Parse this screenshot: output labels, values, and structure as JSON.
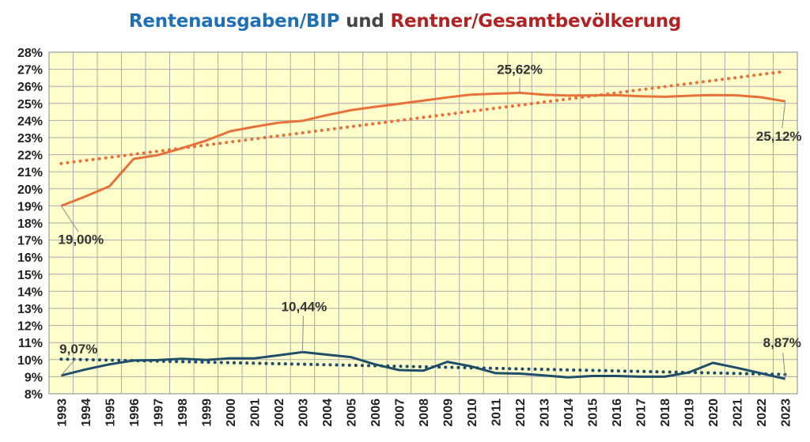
{
  "title": {
    "part1": "Rentenausgaben/BIP",
    "part2": "und",
    "part3": "Rentner/Gesamtbevölkerung"
  },
  "colors": {
    "title_blue": "#1F6FB4",
    "title_red": "#B22222",
    "plot_background": "#FFFFCC",
    "orange_series": "#E8703A",
    "blue_series": "#1F4E6B",
    "grid": "#AAAAAA"
  },
  "chart_data": {
    "type": "line",
    "ylim": [
      0.08,
      0.28
    ],
    "y_tick_step": 0.01,
    "y_tick_labels": [
      "8%",
      "9%",
      "10%",
      "11%",
      "12%",
      "13%",
      "14%",
      "15%",
      "16%",
      "17%",
      "18%",
      "19%",
      "20%",
      "21%",
      "22%",
      "23%",
      "24%",
      "25%",
      "26%",
      "27%",
      "28%"
    ],
    "grid": true,
    "categories": [
      "1993",
      "1994",
      "1995",
      "1996",
      "1997",
      "1998",
      "1999",
      "2000",
      "2001",
      "2002",
      "2003",
      "2004",
      "2005",
      "2006",
      "2007",
      "2008",
      "2009",
      "2010",
      "2011",
      "2012",
      "2013",
      "2014",
      "2015",
      "2016",
      "2017",
      "2018",
      "2019",
      "2020",
      "2021",
      "2022",
      "2023"
    ],
    "series": [
      {
        "key": "rentner",
        "style": "solid",
        "color": "#E8703A",
        "values": [
          0.19,
          0.1955,
          0.2015,
          0.2175,
          0.2197,
          0.2238,
          0.2282,
          0.2337,
          0.2363,
          0.2387,
          0.2398,
          0.2431,
          0.246,
          0.248,
          0.2498,
          0.2516,
          0.2535,
          0.2552,
          0.2557,
          0.2562,
          0.2551,
          0.2546,
          0.2547,
          0.2548,
          0.2542,
          0.2539,
          0.2545,
          0.2549,
          0.2547,
          0.2536,
          0.2512
        ]
      },
      {
        "key": "rentner-trend",
        "style": "dotted",
        "color": "#E8703A",
        "values": [
          0.2148,
          0.2166,
          0.2184,
          0.2202,
          0.222,
          0.2238,
          0.2256,
          0.2274,
          0.2292,
          0.231,
          0.2328,
          0.2346,
          0.2364,
          0.2382,
          0.24,
          0.2418,
          0.2436,
          0.2454,
          0.2472,
          0.249,
          0.2508,
          0.2526,
          0.2544,
          0.2562,
          0.258,
          0.2598,
          0.2616,
          0.2634,
          0.2652,
          0.267,
          0.2688
        ]
      },
      {
        "key": "rentenausgaben",
        "style": "solid",
        "color": "#1F4E6B",
        "values": [
          0.0907,
          0.0942,
          0.0972,
          0.0995,
          0.0997,
          0.1005,
          0.0998,
          0.1008,
          0.1007,
          0.1025,
          0.1044,
          0.1029,
          0.1015,
          0.0972,
          0.0939,
          0.0935,
          0.0987,
          0.096,
          0.0921,
          0.0918,
          0.0908,
          0.0896,
          0.0904,
          0.0904,
          0.09,
          0.09,
          0.0925,
          0.0981,
          0.0952,
          0.092,
          0.0887
        ]
      },
      {
        "key": "rentenausgaben-trend",
        "style": "dotted",
        "color": "#1F4E6B",
        "values": [
          0.1003,
          0.1,
          0.0997,
          0.0994,
          0.0991,
          0.0988,
          0.0985,
          0.0982,
          0.0979,
          0.0976,
          0.0973,
          0.097,
          0.0967,
          0.0964,
          0.0961,
          0.0958,
          0.0955,
          0.0952,
          0.0949,
          0.0946,
          0.0943,
          0.094,
          0.0937,
          0.0934,
          0.0931,
          0.0928,
          0.0925,
          0.0922,
          0.0919,
          0.0916,
          0.0913
        ]
      }
    ],
    "annotations": [
      {
        "text": "19,00%",
        "category": "1993",
        "value": 0.19,
        "series": "rentner"
      },
      {
        "text": "25,62%",
        "category": "2012",
        "value": 0.2562,
        "series": "rentner"
      },
      {
        "text": "25,12%",
        "category": "2023",
        "value": 0.2512,
        "series": "rentner"
      },
      {
        "text": "9,07%",
        "category": "1993",
        "value": 0.0907,
        "series": "rentenausgaben"
      },
      {
        "text": "10,44%",
        "category": "2003",
        "value": 0.1044,
        "series": "rentenausgaben"
      },
      {
        "text": "8,87%",
        "category": "2023",
        "value": 0.0887,
        "series": "rentenausgaben"
      }
    ]
  }
}
